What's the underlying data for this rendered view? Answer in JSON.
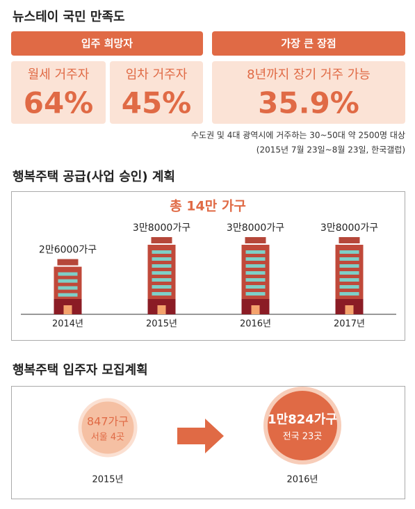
{
  "header": {
    "title": "뉴스테이 국민 만족도"
  },
  "satisfaction": {
    "groups": [
      {
        "label": "입주 희망자",
        "items": [
          {
            "label": "월세 거주자",
            "value": "64%"
          },
          {
            "label": "임차 거주자",
            "value": "45%"
          }
        ]
      },
      {
        "label": "가장 큰 장점",
        "items": [
          {
            "label": "8년까지 장기 거주 가능",
            "value": "35.9%"
          }
        ]
      }
    ],
    "notes": [
      "수도권 및 4대 광역시에 거주하는 30~50대 약 2500명 대상",
      "(2015년 7월 23일~8월 23일, 한국갤럽)"
    ]
  },
  "chart_data": {
    "type": "bar",
    "title": "행복주택 공급(사업 승인) 계획",
    "annotation": "총 14만 가구",
    "categories": [
      "2014년",
      "2015년",
      "2016년",
      "2017년"
    ],
    "values": [
      26000,
      38000,
      38000,
      38000
    ],
    "value_labels": [
      "2만6000가구",
      "3만8000가구",
      "3만8000가구",
      "3만8000가구"
    ],
    "color": "#c0493a"
  },
  "recruitment": {
    "title": "행복주택 입주자 모집계획",
    "items": [
      {
        "year": "2015년",
        "count": "847가구",
        "detail": "서울 4곳"
      },
      {
        "year": "2016년",
        "count": "1만824가구",
        "detail": "전국 23곳"
      }
    ]
  }
}
